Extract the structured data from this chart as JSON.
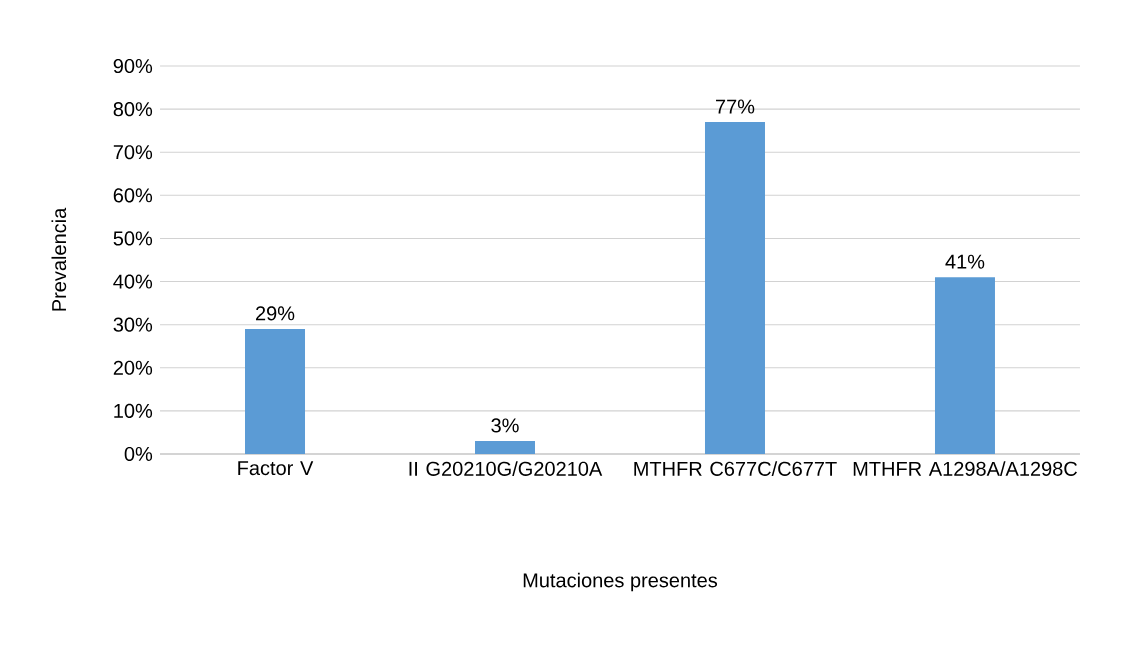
{
  "chart_data": {
    "type": "bar",
    "xlabel": "Mutaciones presentes",
    "ylabel": "Prevalencia",
    "categories": [
      "Factor V",
      "II G20210G/G20210A",
      "MTHFR C677C/C677T",
      "MTHFR A1298A/A1298C"
    ],
    "values": [
      29,
      3,
      77,
      41
    ],
    "value_labels": [
      "29%",
      "3%",
      "77%",
      "41%"
    ],
    "color": "#5b9bd5",
    "ylim": [
      0,
      90
    ],
    "yticks": [
      {
        "value": 0,
        "label": "0%"
      },
      {
        "value": 10,
        "label": "10%"
      },
      {
        "value": 20,
        "label": "20%"
      },
      {
        "value": 30,
        "label": "30%"
      },
      {
        "value": 40,
        "label": "40%"
      },
      {
        "value": 50,
        "label": "50%"
      },
      {
        "value": 60,
        "label": "60%"
      },
      {
        "value": 70,
        "label": "70%"
      },
      {
        "value": 80,
        "label": "80%"
      },
      {
        "value": 90,
        "label": "90%"
      }
    ],
    "grid": "y"
  }
}
